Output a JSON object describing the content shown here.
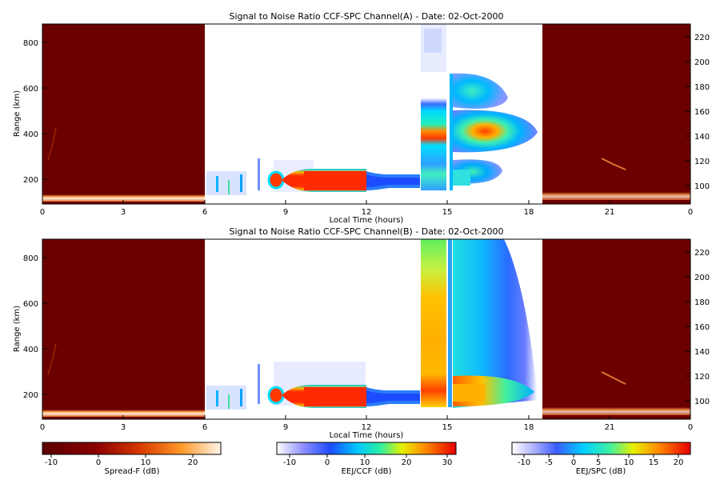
{
  "chart_data": [
    {
      "type": "heatmap",
      "title": "Signal to Noise Ratio CCF-SPC Channel(A) - Date: 02-Oct-2000",
      "xlabel": "Local Time (hours)",
      "ylabel": "Range (km)",
      "x_ticks": [
        "0",
        "3",
        "6",
        "9",
        "12",
        "15",
        "18",
        "21",
        "0"
      ],
      "y_ticks_left": [
        "200",
        "400",
        "600",
        "800"
      ],
      "y_ticks_right": [
        "100",
        "120",
        "140",
        "160",
        "180",
        "200",
        "220"
      ],
      "xlim": [
        0,
        24
      ],
      "ylim_left": [
        90,
        880
      ],
      "ylim_right": [
        86,
        232
      ],
      "segments": [
        {
          "source": "Spread-F",
          "x_range": [
            0,
            6
          ],
          "y_range": [
            90,
            880
          ]
        },
        {
          "source": "EEJ/CCF",
          "x_range": [
            6,
            12
          ],
          "y_range": [
            90,
            880
          ]
        },
        {
          "source": "EEJ/CCF",
          "x_range": [
            12,
            14
          ],
          "y_range": [
            90,
            880
          ]
        },
        {
          "source": "EEJ/SPC",
          "x_range": [
            14,
            18.5
          ],
          "y_range": [
            86,
            232
          ]
        },
        {
          "source": "Spread-F",
          "x_range": [
            18.5,
            24
          ],
          "y_range": [
            90,
            880
          ]
        }
      ]
    },
    {
      "type": "heatmap",
      "title": "Signal to Noise Ratio CCF-SPC Channel(B) - Date: 02-Oct-2000",
      "xlabel": "Local Time (hours)",
      "ylabel": "Range (km)",
      "x_ticks": [
        "0",
        "3",
        "6",
        "9",
        "12",
        "15",
        "18",
        "21",
        "0"
      ],
      "y_ticks_left": [
        "200",
        "400",
        "600",
        "800"
      ],
      "y_ticks_right": [
        "100",
        "120",
        "140",
        "160",
        "180",
        "200",
        "220"
      ],
      "xlim": [
        0,
        24
      ],
      "ylim_left": [
        90,
        880
      ],
      "ylim_right": [
        86,
        232
      ],
      "segments": [
        {
          "source": "Spread-F",
          "x_range": [
            0,
            6
          ],
          "y_range": [
            90,
            880
          ]
        },
        {
          "source": "EEJ/CCF",
          "x_range": [
            6,
            12
          ],
          "y_range": [
            90,
            880
          ]
        },
        {
          "source": "EEJ/CCF",
          "x_range": [
            12,
            14
          ],
          "y_range": [
            90,
            880
          ]
        },
        {
          "source": "EEJ/SPC",
          "x_range": [
            14,
            18.5
          ],
          "y_range": [
            86,
            232
          ]
        },
        {
          "source": "Spread-F",
          "x_range": [
            18.5,
            24
          ],
          "y_range": [
            90,
            880
          ]
        }
      ]
    }
  ],
  "colorbars": [
    {
      "label": "Spread-F (dB)",
      "ticks": [
        "-10",
        "0",
        "10",
        "20"
      ],
      "range": [
        -14,
        24
      ]
    },
    {
      "label": "EEJ/CCF (dB)",
      "ticks": [
        "-10",
        "0",
        "10",
        "20",
        "30"
      ],
      "range": [
        -15,
        33
      ]
    },
    {
      "label": "EEJ/SPC (dB)",
      "ticks": [
        "-10",
        "-5",
        "0",
        "5",
        "10",
        "15",
        "20"
      ],
      "range": [
        -13,
        23
      ]
    }
  ]
}
